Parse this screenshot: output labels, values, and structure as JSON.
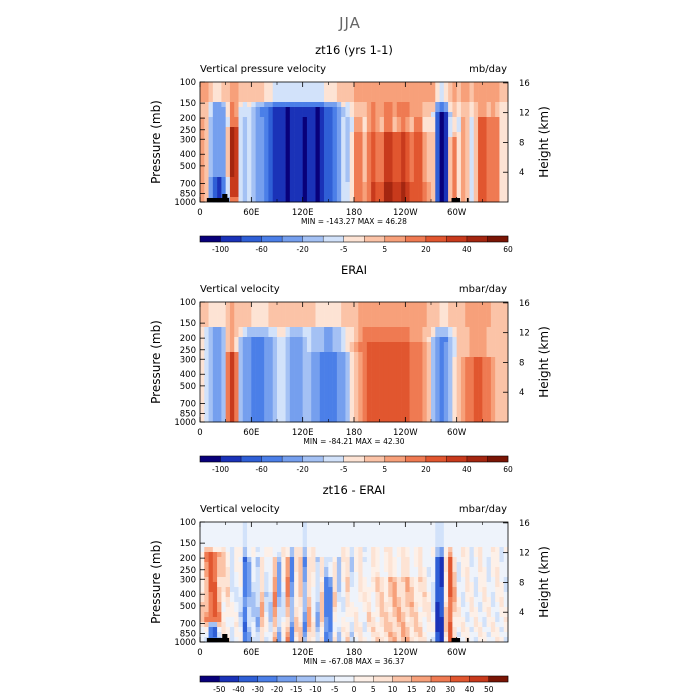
{
  "figure": {
    "title": "JJA"
  },
  "chart_data": [
    {
      "type": "heatmap",
      "panel_title": "zt16 (yrs 1-1)",
      "left_label": "Vertical pressure velocity",
      "right_label": "mb/day",
      "xlabel": "",
      "ylabel": "Pressure (mb)",
      "y2label": "Height (km)",
      "x_ticks": [
        "0",
        "60E",
        "120E",
        "180",
        "120W",
        "60W"
      ],
      "y_ticks": [
        "100",
        "150",
        "200",
        "250",
        "300",
        "400",
        "500",
        "700",
        "850",
        "1000"
      ],
      "y2_ticks": [
        "16",
        "12",
        "8",
        "4"
      ],
      "stats": "MIN = -143.27   MAX =  46.28",
      "colorbar_labels": [
        "-100",
        "-60",
        "-20",
        "-5",
        "5",
        "20",
        "40",
        "60"
      ],
      "colorbar_colors": [
        "#08007a",
        "#1a32b8",
        "#2f5fd6",
        "#4b7fe8",
        "#759fee",
        "#a4c1f4",
        "#d2e2fa",
        "#fde3d4",
        "#fbc3a7",
        "#f7a07a",
        "#ef7a52",
        "#e1562f",
        "#c83a1c",
        "#a42610",
        "#7a1505"
      ],
      "value_range": [
        -143.27,
        46.28
      ],
      "x_range_deg": [
        0,
        360
      ],
      "y_range_mb": [
        100,
        1000
      ]
    },
    {
      "type": "heatmap",
      "panel_title": "ERAI",
      "left_label": "Vertical velocity",
      "right_label": "mbar/day",
      "xlabel": "",
      "ylabel": "Pressure (mb)",
      "y2label": "Height (km)",
      "x_ticks": [
        "0",
        "60E",
        "120E",
        "180",
        "120W",
        "60W"
      ],
      "y_ticks": [
        "100",
        "150",
        "200",
        "250",
        "300",
        "400",
        "500",
        "700",
        "850",
        "1000"
      ],
      "y2_ticks": [
        "16",
        "12",
        "8",
        "4"
      ],
      "stats": "MIN = -84.21   MAX =  42.30",
      "colorbar_labels": [
        "-100",
        "-60",
        "-20",
        "-5",
        "5",
        "20",
        "40",
        "60"
      ],
      "colorbar_colors": [
        "#08007a",
        "#1a32b8",
        "#2f5fd6",
        "#4b7fe8",
        "#759fee",
        "#a4c1f4",
        "#d2e2fa",
        "#fde3d4",
        "#fbc3a7",
        "#f7a07a",
        "#ef7a52",
        "#e1562f",
        "#c83a1c",
        "#a42610",
        "#7a1505"
      ],
      "value_range": [
        -84.21,
        42.3
      ],
      "x_range_deg": [
        0,
        360
      ],
      "y_range_mb": [
        100,
        1000
      ]
    },
    {
      "type": "heatmap",
      "panel_title": "zt16 - ERAI",
      "left_label": "Vertical velocity",
      "right_label": "mbar/day",
      "xlabel": "",
      "ylabel": "Pressure (mb)",
      "y2label": "Height (km)",
      "x_ticks": [
        "0",
        "60E",
        "120E",
        "180",
        "120W",
        "60W"
      ],
      "y_ticks": [
        "100",
        "150",
        "200",
        "250",
        "300",
        "400",
        "500",
        "700",
        "850",
        "1000"
      ],
      "y2_ticks": [
        "16",
        "12",
        "8",
        "4"
      ],
      "stats": "MIN = -67.08   MAX =  36.37",
      "colorbar_labels": [
        "-50",
        "-40",
        "-30",
        "-20",
        "-15",
        "-10",
        "-5",
        "0",
        "5",
        "10",
        "15",
        "20",
        "30",
        "40",
        "50"
      ],
      "colorbar_colors": [
        "#08007a",
        "#1a32b8",
        "#2f5fd6",
        "#4b7fe8",
        "#759fee",
        "#a4c1f4",
        "#d2e2fa",
        "#eef3fb",
        "#fdf0e8",
        "#fde3d4",
        "#fbc3a7",
        "#f7a07a",
        "#ef7a52",
        "#e1562f",
        "#c83a1c",
        "#7a1505"
      ],
      "value_range": [
        -67.08,
        36.37
      ],
      "x_range_deg": [
        0,
        360
      ],
      "y_range_mb": [
        100,
        1000
      ]
    }
  ]
}
